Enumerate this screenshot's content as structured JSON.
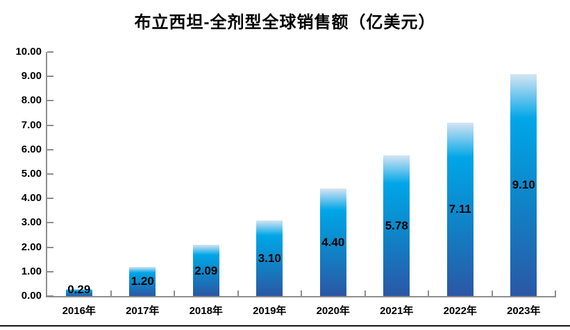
{
  "title": "布立西坦-全剂型全球销售额（亿美元）",
  "chart_data": {
    "type": "bar",
    "title": "布立西坦-全剂型全球销售额（亿美元）",
    "categories": [
      "2016年",
      "2017年",
      "2018年",
      "2019年",
      "2020年",
      "2021年",
      "2022年",
      "2023年"
    ],
    "values": [
      0.29,
      1.2,
      2.09,
      3.1,
      4.4,
      5.78,
      7.11,
      9.1
    ],
    "value_labels": [
      "0.29",
      "1.20",
      "2.09",
      "3.10",
      "4.40",
      "5.78",
      "7.11",
      "9.10"
    ],
    "xlabel": "",
    "ylabel": "",
    "ylim": [
      0,
      10
    ],
    "ytick_step": 1,
    "ytick_labels": [
      "0.00",
      "1.00",
      "2.00",
      "3.00",
      "4.00",
      "5.00",
      "6.00",
      "7.00",
      "8.00",
      "9.00",
      "10.00"
    ],
    "grid": "off",
    "legend": "none",
    "value_label_position": "center-of-bar",
    "colors": {
      "bar_gradient_top": "#d6e4f4",
      "bar_gradient_cyan": "#00a6e7",
      "bar_gradient_bottom": "#2b57a5",
      "axis": "#8e8e8e",
      "text": "#000000",
      "background": "#ffffff"
    }
  }
}
